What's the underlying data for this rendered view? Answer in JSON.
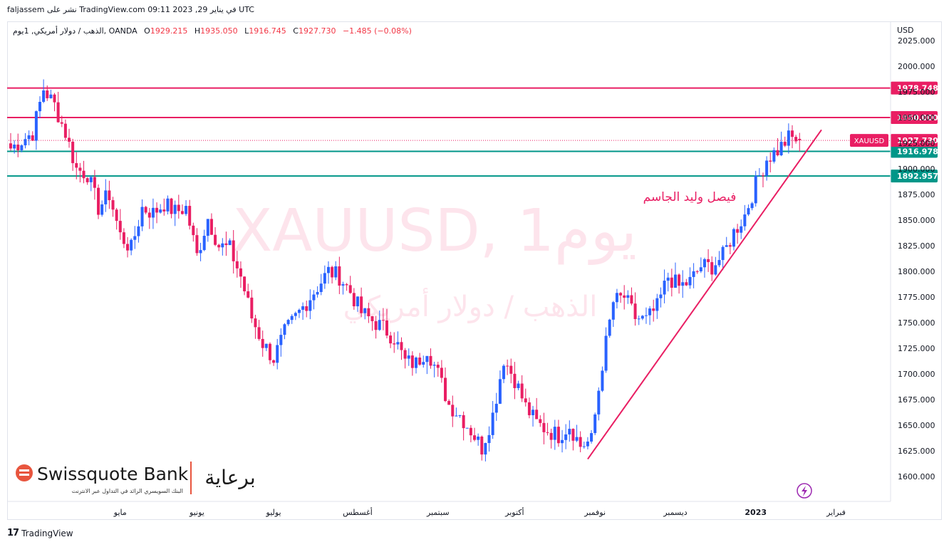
{
  "header": {
    "published_line": "faljassem نشر على TradingView.com في يناير 29, 2023 09:11 UTC"
  },
  "legend": {
    "symbol_title": "الذهب / دولار أمريكي, 1يوم, OANDA",
    "open_label": "O",
    "open": "1929.215",
    "high_label": "H",
    "high": "1935.050",
    "low_label": "L",
    "low": "1916.745",
    "close_label": "C",
    "close": "1927.730",
    "change": "−1.485 (−0.08%)"
  },
  "watermark": {
    "line1": "XAUUSD, 1يوم",
    "line2": "الذهب / دولار أمريكي"
  },
  "annotation_text": "فيصل وليد الجاسم",
  "currency_label": "USD",
  "brand": {
    "name": "Swissquote Bank",
    "tagline": "البنك السويسري الرائد في التداول عبر الانترنت",
    "arabic": "برعاية"
  },
  "footer": {
    "label": "TradingView"
  },
  "colors": {
    "up": "#2962ff",
    "down": "#e91e63",
    "resistance": "#e91e63",
    "support": "#009688",
    "trendline": "#e91e63",
    "watermark": "#fde4ec"
  },
  "chart_data": {
    "type": "candlestick",
    "instrument": "XAUUSD",
    "timeframe": "1يوم",
    "y_axis": {
      "ticks": [
        1600,
        1625,
        1650,
        1675,
        1700,
        1725,
        1750,
        1775,
        1800,
        1825,
        1850,
        1875,
        1900,
        1925,
        1950,
        1975,
        2000,
        2025
      ],
      "tick_labels": [
        "1600.000",
        "1625.000",
        "1650.000",
        "1675.000",
        "1700.000",
        "1725.000",
        "1750.000",
        "1775.000",
        "1800.000",
        "1825.000",
        "1850.000",
        "1875.000",
        "1900.000",
        "1925.000",
        "1950.000",
        "1975.000",
        "2000.000",
        "2025.000"
      ],
      "range": [
        1575,
        2033
      ]
    },
    "x_axis": {
      "labels": [
        "مايو",
        "يونيو",
        "يوليو",
        "أغسطس",
        "سبتمبر",
        "أكتوبر",
        "نوفمبر",
        "ديسمبر",
        "2023",
        "فبراير"
      ],
      "label_index": [
        30,
        51,
        72,
        95,
        117,
        138,
        160,
        182,
        204,
        226
      ],
      "bold_label": "2023"
    },
    "total_slots": 240,
    "waypoints": [
      [
        0,
        1920
      ],
      [
        6,
        1935
      ],
      [
        9,
        1978
      ],
      [
        12,
        1962
      ],
      [
        15,
        1935
      ],
      [
        18,
        1900
      ],
      [
        21,
        1895
      ],
      [
        24,
        1862
      ],
      [
        27,
        1875
      ],
      [
        30,
        1835
      ],
      [
        33,
        1822
      ],
      [
        36,
        1862
      ],
      [
        39,
        1857
      ],
      [
        42,
        1866
      ],
      [
        45,
        1858
      ],
      [
        48,
        1862
      ],
      [
        51,
        1815
      ],
      [
        54,
        1852
      ],
      [
        57,
        1825
      ],
      [
        60,
        1822
      ],
      [
        63,
        1795
      ],
      [
        66,
        1755
      ],
      [
        69,
        1730
      ],
      [
        72,
        1715
      ],
      [
        75,
        1740
      ],
      [
        78,
        1755
      ],
      [
        81,
        1770
      ],
      [
        84,
        1785
      ],
      [
        87,
        1800
      ],
      [
        90,
        1795
      ],
      [
        93,
        1780
      ],
      [
        96,
        1760
      ],
      [
        99,
        1752
      ],
      [
        102,
        1745
      ],
      [
        105,
        1735
      ],
      [
        108,
        1712
      ],
      [
        111,
        1710
      ],
      [
        114,
        1725
      ],
      [
        117,
        1700
      ],
      [
        120,
        1670
      ],
      [
        123,
        1660
      ],
      [
        126,
        1645
      ],
      [
        129,
        1628
      ],
      [
        132,
        1660
      ],
      [
        135,
        1715
      ],
      [
        138,
        1695
      ],
      [
        141,
        1668
      ],
      [
        144,
        1652
      ],
      [
        147,
        1645
      ],
      [
        150,
        1640
      ],
      [
        153,
        1650
      ],
      [
        156,
        1630
      ],
      [
        159,
        1635
      ],
      [
        162,
        1710
      ],
      [
        165,
        1770
      ],
      [
        168,
        1775
      ],
      [
        171,
        1755
      ],
      [
        174,
        1752
      ],
      [
        177,
        1765
      ],
      [
        180,
        1795
      ],
      [
        183,
        1785
      ],
      [
        186,
        1790
      ],
      [
        189,
        1805
      ],
      [
        192,
        1805
      ],
      [
        195,
        1815
      ],
      [
        198,
        1838
      ],
      [
        201,
        1855
      ],
      [
        204,
        1885
      ],
      [
        207,
        1910
      ],
      [
        210,
        1918
      ],
      [
        213,
        1930
      ],
      [
        216,
        1928
      ]
    ],
    "last_candle": {
      "open": 1929.215,
      "high": 1935.05,
      "low": 1916.745,
      "close": 1927.73
    },
    "horizontal_levels": [
      {
        "value": 1978.748,
        "label": "1978.748",
        "color": "resistance"
      },
      {
        "value": 1950.0,
        "label": "1950.000",
        "color": "resistance"
      },
      {
        "value": 1916.978,
        "label": "1916.978",
        "color": "support"
      },
      {
        "value": 1892.957,
        "label": "1892.957",
        "color": "support"
      }
    ],
    "current_price": {
      "value": 1927.73,
      "label": "1927.730",
      "tag": "XAUUSD"
    },
    "trendline": {
      "from": {
        "slot": 158,
        "price": 1617
      },
      "to": {
        "slot": 222,
        "price": 1938
      }
    }
  }
}
